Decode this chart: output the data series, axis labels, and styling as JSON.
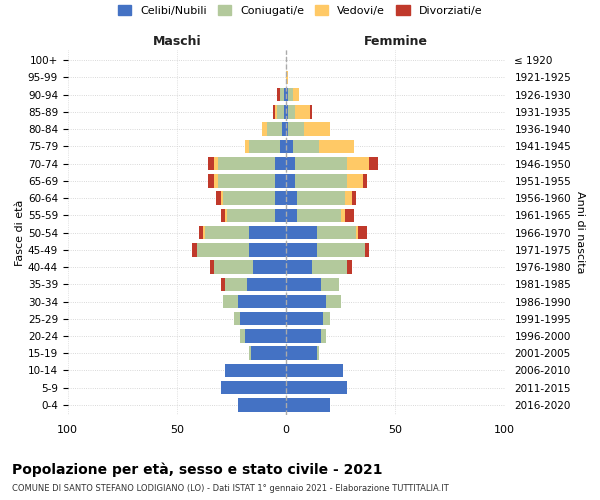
{
  "age_groups": [
    "100+",
    "95-99",
    "90-94",
    "85-89",
    "80-84",
    "75-79",
    "70-74",
    "65-69",
    "60-64",
    "55-59",
    "50-54",
    "45-49",
    "40-44",
    "35-39",
    "30-34",
    "25-29",
    "20-24",
    "15-19",
    "10-14",
    "5-9",
    "0-4"
  ],
  "birth_years": [
    "≤ 1920",
    "1921-1925",
    "1926-1930",
    "1931-1935",
    "1936-1940",
    "1941-1945",
    "1946-1950",
    "1951-1955",
    "1956-1960",
    "1961-1965",
    "1966-1970",
    "1971-1975",
    "1976-1980",
    "1981-1985",
    "1986-1990",
    "1991-1995",
    "1996-2000",
    "2001-2005",
    "2006-2010",
    "2011-2015",
    "2016-2020"
  ],
  "males": {
    "celibi": [
      0,
      0,
      1,
      1,
      2,
      3,
      5,
      5,
      5,
      5,
      17,
      17,
      15,
      18,
      22,
      21,
      19,
      16,
      28,
      30,
      22
    ],
    "coniugati": [
      0,
      0,
      2,
      3,
      7,
      14,
      26,
      26,
      24,
      22,
      20,
      24,
      18,
      10,
      7,
      3,
      2,
      1,
      0,
      0,
      0
    ],
    "vedovi": [
      0,
      0,
      0,
      1,
      2,
      2,
      2,
      2,
      1,
      1,
      1,
      0,
      0,
      0,
      0,
      0,
      0,
      0,
      0,
      0,
      0
    ],
    "divorziati": [
      0,
      0,
      1,
      1,
      0,
      0,
      3,
      3,
      2,
      2,
      2,
      2,
      2,
      2,
      0,
      0,
      0,
      0,
      0,
      0,
      0
    ]
  },
  "females": {
    "nubili": [
      0,
      0,
      1,
      1,
      1,
      3,
      4,
      4,
      5,
      5,
      14,
      14,
      12,
      16,
      18,
      17,
      16,
      14,
      26,
      28,
      20
    ],
    "coniugate": [
      0,
      0,
      2,
      3,
      7,
      12,
      24,
      24,
      22,
      20,
      18,
      22,
      16,
      8,
      7,
      3,
      2,
      1,
      0,
      0,
      0
    ],
    "vedove": [
      0,
      1,
      3,
      7,
      12,
      16,
      10,
      7,
      3,
      2,
      1,
      0,
      0,
      0,
      0,
      0,
      0,
      0,
      0,
      0,
      0
    ],
    "divorziate": [
      0,
      0,
      0,
      1,
      0,
      0,
      4,
      2,
      2,
      4,
      4,
      2,
      2,
      0,
      0,
      0,
      0,
      0,
      0,
      0,
      0
    ]
  },
  "colors": {
    "celibi": "#4472c4",
    "coniugati": "#b3c99c",
    "vedovi": "#ffc966",
    "divorziati": "#c0392b"
  },
  "legend_labels": [
    "Celibi/Nubili",
    "Coniugati/e",
    "Vedovi/e",
    "Divorziati/e"
  ],
  "title": "Popolazione per età, sesso e stato civile - 2021",
  "subtitle": "COMUNE DI SANTO STEFANO LODIGIANO (LO) - Dati ISTAT 1° gennaio 2021 - Elaborazione TUTTITALIA.IT",
  "ylabel_left": "Fasce di età",
  "ylabel_right": "Anni di nascita",
  "xlabel_left": "Maschi",
  "xlabel_right": "Femmine",
  "xlim": 100,
  "xticks": [
    -100,
    -50,
    0,
    50,
    100
  ],
  "xticklabels": [
    "100",
    "50",
    "0",
    "50",
    "100"
  ],
  "bg_color": "#ffffff",
  "grid_color": "#cccccc"
}
